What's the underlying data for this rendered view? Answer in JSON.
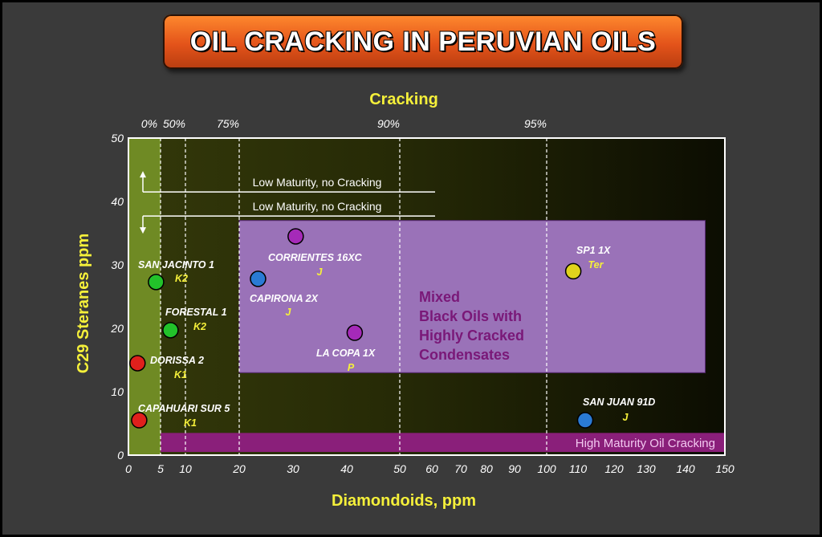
{
  "title": "OIL CRACKING IN PERUVIAN OILS",
  "chart_data": {
    "type": "scatter",
    "xlabel": "Diamondoids, ppm",
    "ylabel": "C29 Steranes ppm",
    "top_axis_label": "Cracking",
    "xlim": [
      0,
      150
    ],
    "ylim": [
      0,
      50
    ],
    "x_ticks": [
      0,
      5,
      10,
      20,
      30,
      40,
      50,
      60,
      70,
      80,
      90,
      100,
      110,
      120,
      130,
      140,
      150
    ],
    "y_ticks": [
      0,
      10,
      20,
      30,
      40,
      50
    ],
    "cracking_lines": [
      {
        "x": 5,
        "label": "0%"
      },
      {
        "x": 10,
        "label": "50%"
      },
      {
        "x": 20,
        "label": "75%"
      },
      {
        "x": 50,
        "label": "90%"
      },
      {
        "x": 100,
        "label": "95%"
      }
    ],
    "regions": [
      {
        "name": "mixed",
        "label_lines": [
          "Mixed",
          "Black Oils with",
          "Highly Cracked",
          "Condensates"
        ],
        "x": [
          20,
          145
        ],
        "y": [
          13,
          37
        ],
        "color": "#9a72b8"
      },
      {
        "name": "high-maturity",
        "label": "High Maturity Oil Cracking",
        "x": [
          5,
          150
        ],
        "y": [
          0.5,
          3.5
        ],
        "color": "#8a1f7a"
      },
      {
        "name": "low-maturity",
        "x": [
          0,
          5
        ],
        "y": [
          0,
          50
        ],
        "color": "#6f8a24"
      }
    ],
    "annotations": [
      {
        "text": "Low Maturity, no Cracking",
        "y": 41.5,
        "arrow": "up"
      },
      {
        "text": "Low Maturity, no Cracking",
        "y": 37.7,
        "arrow": "down"
      }
    ],
    "points": [
      {
        "name": "SAN JACINTO 1",
        "age": "K2",
        "x": 4.2,
        "y": 27.3,
        "color": "#22c22a"
      },
      {
        "name": "FORESTAL 1",
        "age": "K2",
        "x": 7.0,
        "y": 19.7,
        "color": "#22c22a"
      },
      {
        "name": "DORISSA 2",
        "age": "K1",
        "x": 0.9,
        "y": 14.5,
        "color": "#e0201c"
      },
      {
        "name": "CAPAHUARI SUR 5",
        "age": "K1",
        "x": 1.2,
        "y": 5.5,
        "color": "#e0201c"
      },
      {
        "name": "CORRIENTES 16XC",
        "age": "J",
        "x": 30.5,
        "y": 34.5,
        "color": "#a52ab8"
      },
      {
        "name": "CAPIRONA 2X",
        "age": "J",
        "x": 23.5,
        "y": 27.8,
        "color": "#2a7ad4"
      },
      {
        "name": "LA COPA 1X",
        "age": "P",
        "x": 41.5,
        "y": 19.3,
        "color": "#a52ab8"
      },
      {
        "name": "SP1 1X",
        "age": "Ter",
        "x": 108.5,
        "y": 29.0,
        "color": "#e0d21c"
      },
      {
        "name": "SAN JUAN 91D",
        "age": "J",
        "x": 112,
        "y": 5.5,
        "color": "#2a7ad4"
      }
    ]
  }
}
